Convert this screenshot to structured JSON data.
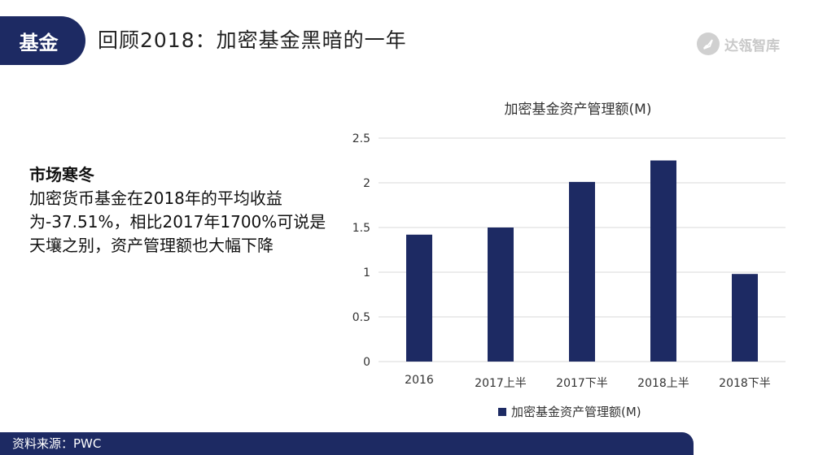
{
  "header": {
    "tag": "基金",
    "title": "回顾2018：加密基金黑暗的一年"
  },
  "logo": {
    "text": "达瓴智库",
    "icon": "rocket-icon"
  },
  "text": {
    "heading": "市场寒冬",
    "body": "加密货币基金在2018年的平均收益为-37.51%，相比2017年1700%可说是天壤之别，资产管理额也大幅下降"
  },
  "footer": {
    "source": "资料来源：PWC"
  },
  "colors": {
    "brand": "#1d2a63",
    "bar": "#1d2a63"
  },
  "chart_data": {
    "type": "bar",
    "title": "加密基金资产管理额(M)",
    "categories": [
      "2016",
      "2017上半",
      "2017下半",
      "2018上半",
      "2018下半"
    ],
    "series": [
      {
        "name": "加密基金资产管理额(M)",
        "values": [
          1.42,
          1.5,
          2.01,
          2.25,
          0.98
        ]
      }
    ],
    "ylim": [
      0,
      2.5
    ],
    "yticks": [
      "0",
      "0.5",
      "1",
      "1.5",
      "2",
      "2.5"
    ],
    "grid": true,
    "legend": "bottom"
  }
}
